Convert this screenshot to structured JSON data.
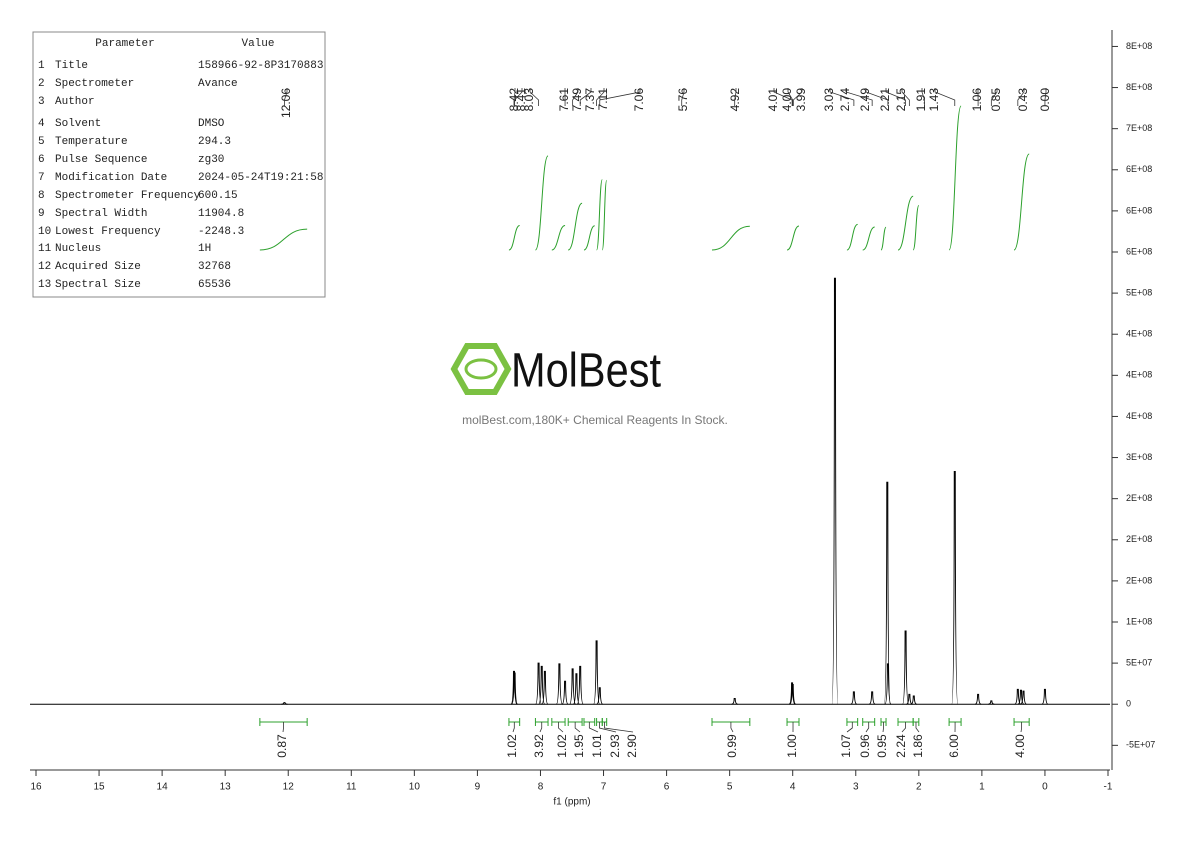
{
  "parameters": {
    "header": [
      "Parameter",
      "Value"
    ],
    "rows": [
      [
        "1",
        "Title",
        "158966-92-8P3170883"
      ],
      [
        "2",
        "Spectrometer",
        "Avance"
      ],
      [
        "3",
        "Author",
        ""
      ],
      [
        "4",
        "Solvent",
        "DMSO"
      ],
      [
        "5",
        "Temperature",
        "294.3"
      ],
      [
        "6",
        "Pulse Sequence",
        "zg30"
      ],
      [
        "7",
        "Modification Date",
        "2024-05-24T19:21:58"
      ],
      [
        "8",
        "Spectrometer Frequency",
        "600.15"
      ],
      [
        "9",
        "Spectral Width",
        "11904.8"
      ],
      [
        "10",
        "Lowest Frequency",
        "-2248.3"
      ],
      [
        "11",
        "Nucleus",
        "1H"
      ],
      [
        "12",
        "Acquired Size",
        "32768"
      ],
      [
        "13",
        "Spectral Size",
        "65536"
      ]
    ]
  },
  "watermark": {
    "brand": "MolBest",
    "tagline": "molBest.com,180K+ Chemical Reagents In Stock."
  },
  "chart_data": {
    "type": "spectrum",
    "x_label": "f1 (ppm)",
    "xlim": [
      16,
      -1
    ],
    "xticks": [
      16,
      15,
      14,
      13,
      12,
      11,
      10,
      9,
      8,
      7,
      6,
      5,
      4,
      3,
      2,
      1,
      0,
      -1
    ],
    "ylim": [
      -80000000,
      820000000
    ],
    "yticks": [
      {
        "value": -50000000,
        "label": "-5E+07"
      },
      0,
      {
        "value": 50000000,
        "label": "5E+07"
      },
      {
        "value": 100000000,
        "label": "1E+08"
      },
      {
        "value": 150000000,
        "label": "2E+08"
      },
      {
        "value": 200000000,
        "label": "2E+08"
      },
      {
        "value": 250000000,
        "label": "2E+08"
      },
      {
        "value": 300000000,
        "label": "3E+08"
      },
      {
        "value": 350000000,
        "label": "4E+08"
      },
      {
        "value": 400000000,
        "label": "4E+08"
      },
      {
        "value": 450000000,
        "label": "4E+08"
      },
      {
        "value": 500000000,
        "label": "5E+08"
      },
      {
        "value": 550000000,
        "label": "6E+08"
      },
      {
        "value": 600000000,
        "label": "6E+08"
      },
      {
        "value": 650000000,
        "label": "6E+08"
      },
      {
        "value": 700000000,
        "label": "7E+08"
      },
      {
        "value": 750000000,
        "label": "8E+08"
      },
      {
        "value": 800000000,
        "label": "8E+08"
      }
    ],
    "color": "#000000",
    "integral_color": "#2ca02c",
    "x": [
      12.06,
      8.42,
      8.41,
      8.03,
      7.98,
      7.93,
      7.7,
      7.61,
      7.49,
      7.43,
      7.37,
      7.11,
      7.06,
      4.92,
      4.01,
      4.0,
      3.33,
      3.03,
      2.74,
      2.5,
      2.49,
      2.21,
      2.15,
      2.08,
      1.43,
      1.06,
      0.85,
      0.43,
      0.38,
      0.34,
      0.0
    ],
    "values": [
      2000000,
      40000000,
      38000000,
      50000000,
      46000000,
      40000000,
      49000000,
      28000000,
      43000000,
      37000000,
      46000000,
      77000000,
      20000000,
      7000000,
      26000000,
      24000000,
      518000000,
      15000000,
      15000000,
      270000000,
      49000000,
      89000000,
      12000000,
      10000000,
      283000000,
      12000000,
      4000000,
      18000000,
      17000000,
      16000000,
      18000000
    ],
    "peak_labels": [
      "12.06",
      "8.42",
      "8.41",
      "8.03",
      "7.61",
      "7.49",
      "7.37",
      "7.11",
      "7.06",
      "5.76",
      "4.92",
      "4.01",
      "4.00",
      "3.99",
      "3.03",
      "2.74",
      "2.49",
      "2.21",
      "2.15",
      "1.91",
      "1.43",
      "1.06",
      "0.85",
      "0.43",
      "0.00"
    ],
    "integral_labels": [
      "0.87",
      "1.02",
      "3.92",
      "1.02",
      "1.95",
      "1.01",
      "2.93",
      "2.90",
      "0.99",
      "1.00",
      "1.07",
      "0.96",
      "0.95",
      "2.24",
      "1.86",
      "6.00",
      "4.00"
    ],
    "integral_ranges": [
      [
        12.45,
        11.7
      ],
      [
        8.5,
        8.33
      ],
      [
        8.08,
        7.88
      ],
      [
        7.82,
        7.61
      ],
      [
        7.56,
        7.34
      ],
      [
        7.31,
        7.14
      ],
      [
        7.11,
        7.02
      ],
      [
        7.02,
        6.95
      ],
      [
        5.28,
        4.68
      ],
      [
        4.09,
        3.9
      ],
      [
        3.14,
        2.97
      ],
      [
        2.89,
        2.7
      ],
      [
        2.6,
        2.52
      ],
      [
        2.33,
        2.09
      ],
      [
        2.09,
        2.0
      ],
      [
        1.52,
        1.33
      ],
      [
        0.49,
        0.25
      ]
    ]
  }
}
